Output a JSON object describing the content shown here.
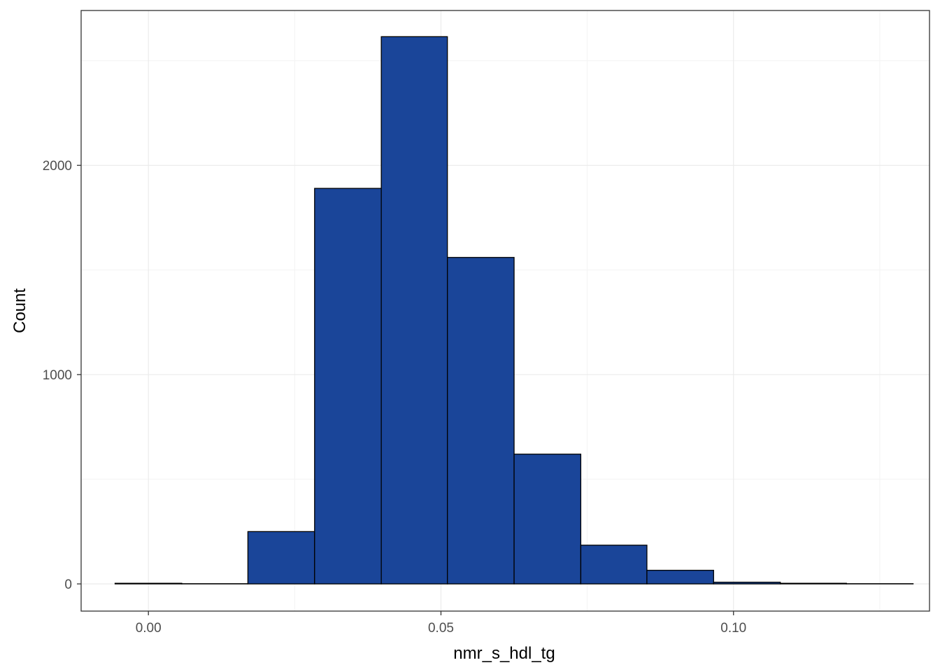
{
  "chart_data": {
    "type": "bar",
    "subtype": "histogram",
    "title": "",
    "xlabel": "nmr_s_hdl_tg",
    "ylabel": "Count",
    "xlim": [
      -0.0115,
      0.1335
    ],
    "ylim": [
      -130,
      2740
    ],
    "x_ticks": [
      0.0,
      0.05,
      0.1
    ],
    "x_tick_labels": [
      "0.00",
      "0.05",
      "0.10"
    ],
    "y_ticks": [
      0,
      1000,
      2000
    ],
    "y_tick_labels": [
      "0",
      "1000",
      "2000"
    ],
    "grid": true,
    "bins": [
      {
        "x0": -0.0057,
        "x1": 0.0057,
        "count": 3
      },
      {
        "x0": 0.0057,
        "x1": 0.017,
        "count": 1
      },
      {
        "x0": 0.017,
        "x1": 0.0284,
        "count": 250
      },
      {
        "x0": 0.0284,
        "x1": 0.0398,
        "count": 1890
      },
      {
        "x0": 0.0398,
        "x1": 0.0511,
        "count": 2615
      },
      {
        "x0": 0.0511,
        "x1": 0.0625,
        "count": 1560
      },
      {
        "x0": 0.0625,
        "x1": 0.0739,
        "count": 620
      },
      {
        "x0": 0.0739,
        "x1": 0.0852,
        "count": 185
      },
      {
        "x0": 0.0852,
        "x1": 0.0966,
        "count": 65
      },
      {
        "x0": 0.0966,
        "x1": 0.108,
        "count": 8
      },
      {
        "x0": 0.108,
        "x1": 0.1193,
        "count": 3
      },
      {
        "x0": 0.1193,
        "x1": 0.1307,
        "count": 1
      }
    ],
    "fill_color": "#1a4599",
    "outline_color": "#000000",
    "panel_border_color": "#333333",
    "grid_major_color": "#ebebeb",
    "grid_minor_color": "#f3f3f3"
  }
}
